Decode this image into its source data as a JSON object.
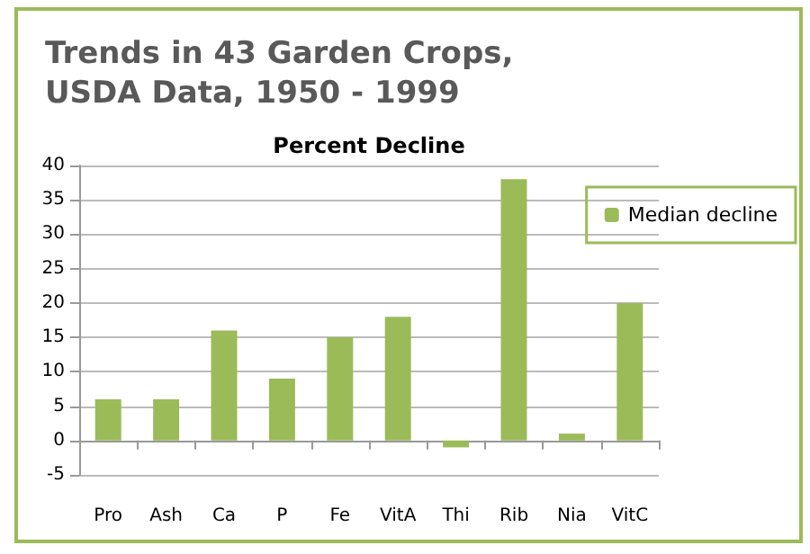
{
  "chart_data": {
    "type": "bar",
    "title": "Trends in 43 Garden Crops,\nUSDA Data, 1950 - 1999",
    "subtitle": "Percent Decline",
    "categories": [
      "Pro",
      "Ash",
      "Ca",
      "P",
      "Fe",
      "VitA",
      "Thi",
      "Rib",
      "Nia",
      "VitC"
    ],
    "series": [
      {
        "name": "Median decline",
        "color": "#9bbb59",
        "values": [
          6,
          6,
          16,
          9,
          15,
          18,
          -1,
          38,
          1,
          20
        ]
      }
    ],
    "ylim": [
      -5,
      40
    ],
    "yticks": [
      -5,
      0,
      5,
      10,
      15,
      20,
      25,
      30,
      35,
      40
    ],
    "grid": "y",
    "legend": "right"
  }
}
